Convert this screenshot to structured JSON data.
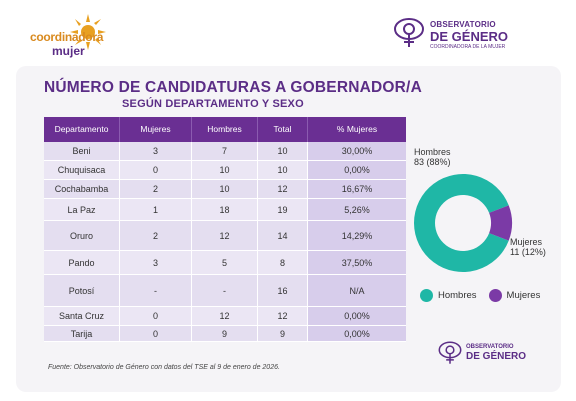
{
  "logos": {
    "left_line1": "coordinadora",
    "left_line2": "mujer",
    "right_line1": "OBSERVATORIO",
    "right_line2": "DE GÉNERO",
    "right_line3": "COORDINADORA DE LA MUJER"
  },
  "title": "NÚMERO DE CANDIDATURAS A GOBERNADOR/A",
  "subtitle": "SEGÚN DEPARTAMENTO Y SEXO",
  "table": {
    "headers": [
      "Departamento",
      "Mujeres",
      "Hombres",
      "Total",
      "% Mujeres"
    ],
    "rows": [
      [
        "Beni",
        "3",
        "7",
        "10",
        "30,00%"
      ],
      [
        "Chuquisaca",
        "0",
        "10",
        "10",
        "0,00%"
      ],
      [
        "Cochabamba",
        "2",
        "10",
        "12",
        "16,67%"
      ],
      [
        "La Paz",
        "1",
        "18",
        "19",
        "5,26%"
      ],
      [
        "Oruro",
        "2",
        "12",
        "14",
        "14,29%"
      ],
      [
        "Pando",
        "3",
        "5",
        "8",
        "37,50%"
      ],
      [
        "Potosí",
        "-",
        "-",
        "16",
        "N/A"
      ],
      [
        "Santa Cruz",
        "0",
        "12",
        "12",
        "0,00%"
      ],
      [
        "Tarija",
        "0",
        "9",
        "9",
        "0,00%"
      ]
    ]
  },
  "source": "Fuente: Observatorio de Género con datos del TSE al 9 de enero de 2026.",
  "chart_data": {
    "type": "pie",
    "categories": [
      "Hombres",
      "Mujeres"
    ],
    "values": [
      83,
      11
    ],
    "percent": [
      88,
      12
    ],
    "labels": [
      "83 (88%)",
      "11 (12%)"
    ],
    "colors": [
      "#1fb7a6",
      "#7b3aa6"
    ],
    "legend": "bottom"
  }
}
